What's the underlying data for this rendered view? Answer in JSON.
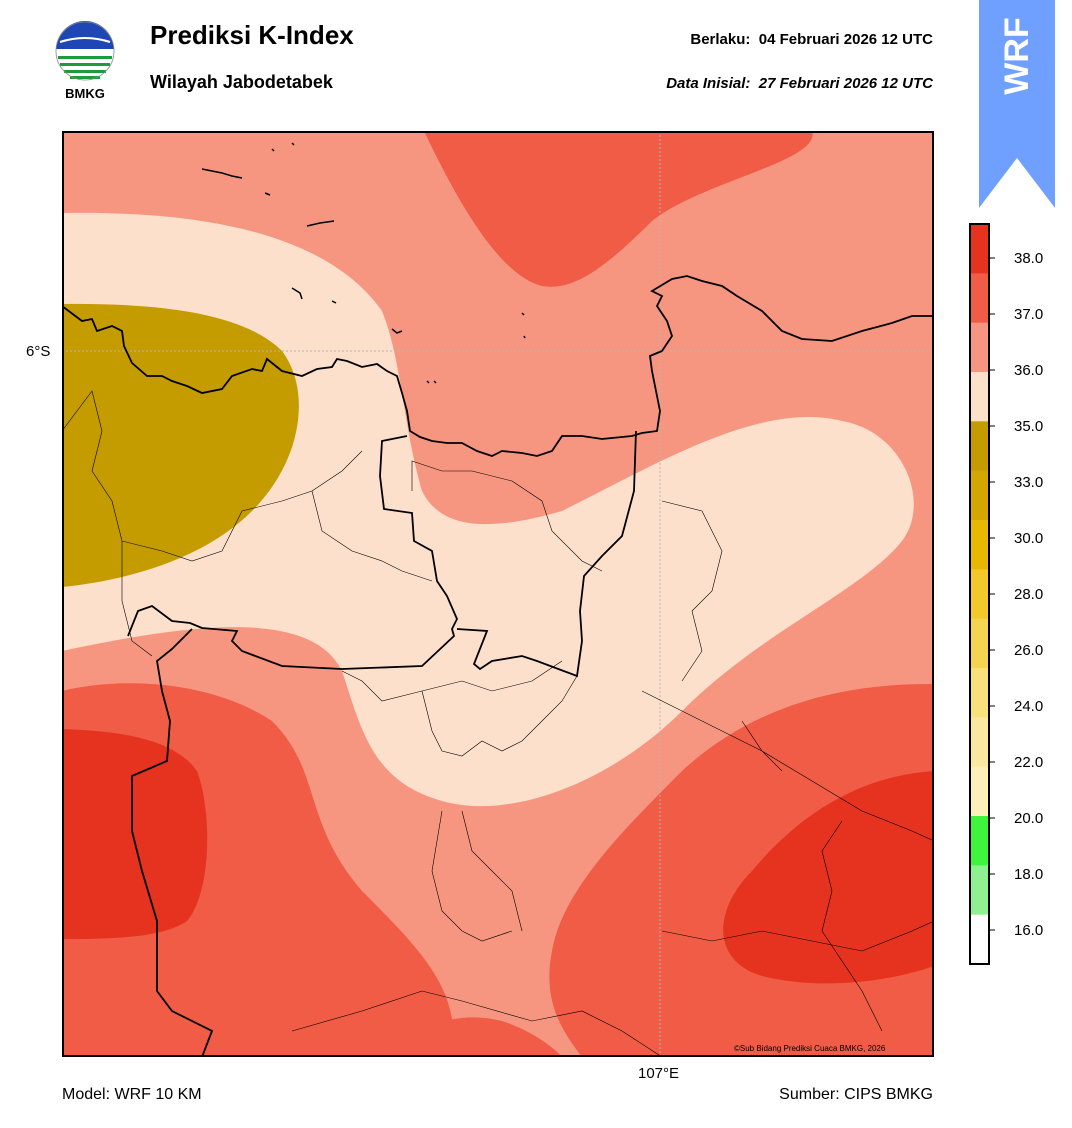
{
  "header": {
    "title": "Prediksi K-Index",
    "subtitle": "Wilayah Jabodetabek",
    "valid_label": "Berlaku:",
    "valid_value": "04 Februari 2026 12 UTC",
    "init_label": "Data Inisial:",
    "init_value": "27 Februari 2026 12 UTC"
  },
  "logo": {
    "text": "BMKG",
    "icon": "bmkg-logo-icon"
  },
  "badge": {
    "text": "WRF",
    "color": "#6fa0ff"
  },
  "map": {
    "lat_label": "6°S",
    "lon_label": "107°E",
    "copyright": "©Sub Bidang Prediksi Cuaca BMKG, 2026"
  },
  "footer": {
    "model": "Model: WRF 10 KM",
    "source": "Sumber: CIPS BMKG"
  },
  "colorbar": {
    "ticks": [
      "38.0",
      "37.0",
      "36.0",
      "35.0",
      "33.0",
      "30.0",
      "28.0",
      "26.0",
      "24.0",
      "22.0",
      "20.0",
      "18.0",
      "16.0"
    ],
    "colors": [
      "#e53320",
      "#f05c45",
      "#f79680",
      "#fde0cc",
      "#c59c00",
      "#d4a600",
      "#e6b800",
      "#f2c929",
      "#f5d550",
      "#f8e07a",
      "#fae8a0",
      "#fcefb8",
      "#3df53d",
      "#8ef08e",
      "#ffffff"
    ]
  }
}
